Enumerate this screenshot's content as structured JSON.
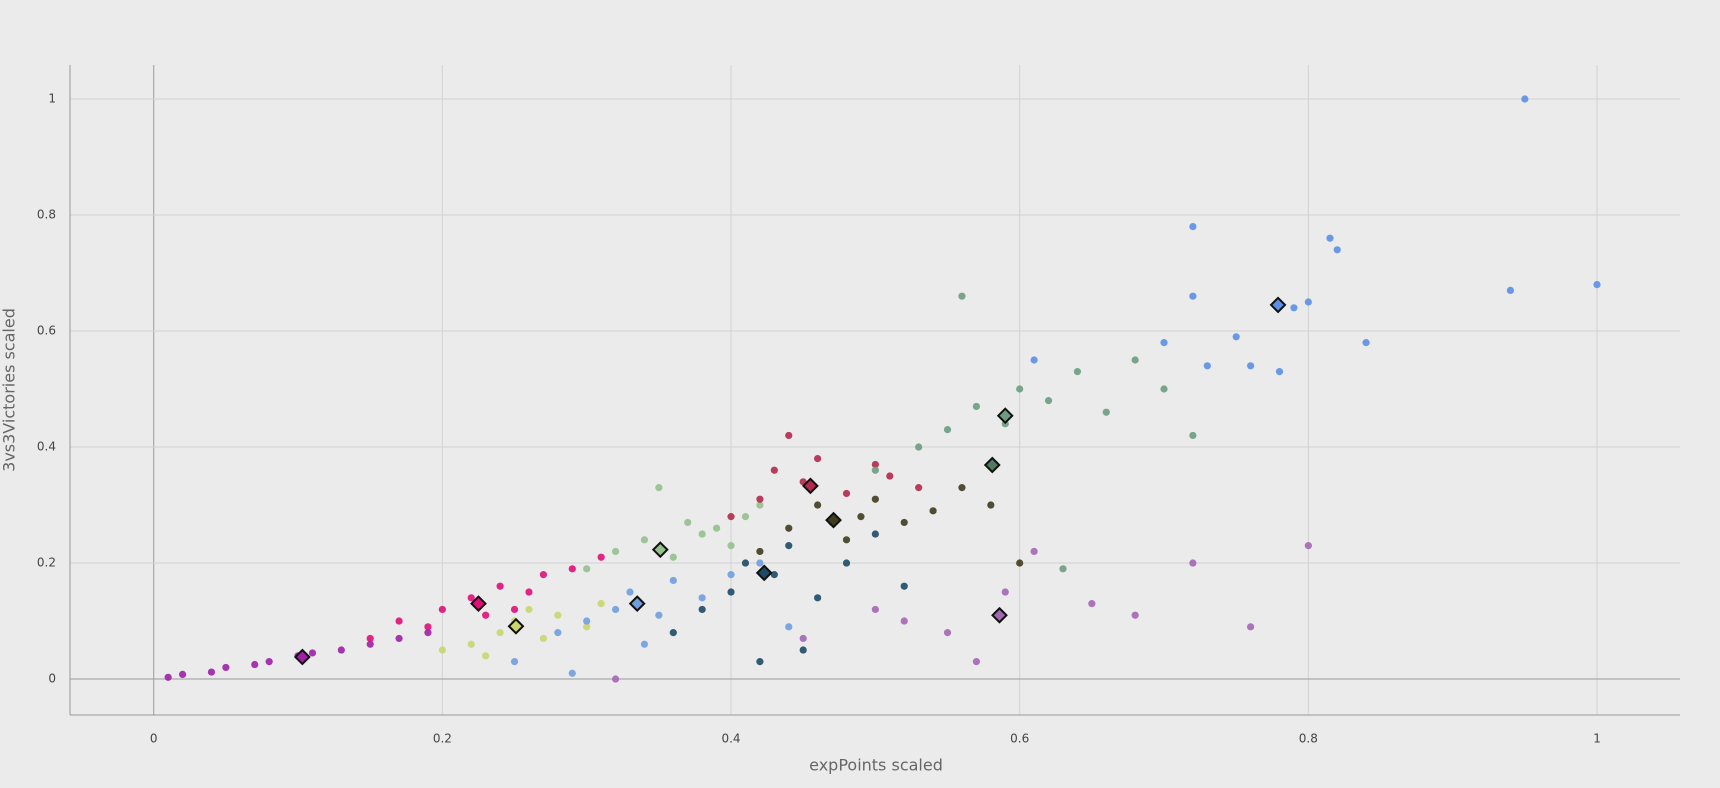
{
  "chart_data": {
    "type": "scatter",
    "x_label": "expPoints scaled",
    "y_label": "3vs3Victories scaled",
    "xlim": [
      -0.058,
      1.0575
    ],
    "ylim": [
      -0.062,
      1.0586
    ],
    "xticks": [
      0,
      0.2,
      0.4,
      0.6,
      0.8,
      1
    ],
    "yticks": [
      0,
      0.2,
      0.4,
      0.6,
      0.8,
      1
    ],
    "grid": true,
    "series": [
      {
        "color": "#a020a8",
        "x": [
          0.01,
          0.02,
          0.04,
          0.05,
          0.07,
          0.08,
          0.1,
          0.11,
          0.13,
          0.15,
          0.17,
          0.19
        ],
        "values": [
          0.003,
          0.008,
          0.012,
          0.02,
          0.025,
          0.03,
          0.04,
          0.045,
          0.05,
          0.06,
          0.07,
          0.08
        ]
      },
      {
        "color": "#e0107a",
        "x": [
          0.15,
          0.17,
          0.19,
          0.2,
          0.22,
          0.23,
          0.24,
          0.26,
          0.27,
          0.29,
          0.31,
          0.25
        ],
        "values": [
          0.07,
          0.1,
          0.09,
          0.12,
          0.14,
          0.11,
          0.16,
          0.15,
          0.18,
          0.19,
          0.21,
          0.12
        ]
      },
      {
        "color": "#c9d66e",
        "x": [
          0.2,
          0.22,
          0.24,
          0.25,
          0.27,
          0.28,
          0.3,
          0.31,
          0.26,
          0.23
        ],
        "values": [
          0.05,
          0.06,
          0.08,
          0.1,
          0.07,
          0.11,
          0.09,
          0.13,
          0.12,
          0.04
        ]
      },
      {
        "color": "#6f9ee0",
        "x": [
          0.25,
          0.28,
          0.3,
          0.32,
          0.33,
          0.35,
          0.36,
          0.38,
          0.4,
          0.42,
          0.44,
          0.34,
          0.29
        ],
        "values": [
          0.03,
          0.08,
          0.1,
          0.12,
          0.15,
          0.11,
          0.17,
          0.14,
          0.18,
          0.2,
          0.09,
          0.06,
          0.01
        ]
      },
      {
        "color": "#95c08e",
        "x": [
          0.3,
          0.32,
          0.34,
          0.36,
          0.37,
          0.38,
          0.4,
          0.41,
          0.42,
          0.39,
          0.35
        ],
        "values": [
          0.19,
          0.22,
          0.24,
          0.21,
          0.27,
          0.25,
          0.23,
          0.28,
          0.3,
          0.26,
          0.33
        ]
      },
      {
        "color": "#1d4a66",
        "x": [
          0.36,
          0.38,
          0.4,
          0.41,
          0.43,
          0.44,
          0.46,
          0.48,
          0.5,
          0.52,
          0.45,
          0.42
        ],
        "values": [
          0.08,
          0.12,
          0.15,
          0.2,
          0.18,
          0.23,
          0.14,
          0.2,
          0.25,
          0.16,
          0.05,
          0.03
        ]
      },
      {
        "color": "#b22a4e",
        "x": [
          0.4,
          0.42,
          0.43,
          0.45,
          0.46,
          0.48,
          0.5,
          0.51,
          0.53,
          0.44,
          0.47
        ],
        "values": [
          0.28,
          0.31,
          0.36,
          0.34,
          0.38,
          0.32,
          0.37,
          0.35,
          0.33,
          0.42,
          0.27
        ]
      },
      {
        "color": "#3f3d1e",
        "x": [
          0.42,
          0.44,
          0.46,
          0.48,
          0.49,
          0.5,
          0.52,
          0.54,
          0.56,
          0.58,
          0.6
        ],
        "values": [
          0.22,
          0.26,
          0.3,
          0.24,
          0.28,
          0.31,
          0.27,
          0.29,
          0.33,
          0.3,
          0.2
        ]
      },
      {
        "color": "#6d9c82",
        "x": [
          0.5,
          0.53,
          0.55,
          0.57,
          0.59,
          0.6,
          0.62,
          0.64,
          0.66,
          0.68,
          0.7,
          0.72,
          0.56,
          0.63
        ],
        "values": [
          0.36,
          0.4,
          0.43,
          0.47,
          0.44,
          0.5,
          0.48,
          0.53,
          0.46,
          0.55,
          0.5,
          0.42,
          0.66,
          0.19
        ]
      },
      {
        "color": "#a466b4",
        "x": [
          0.45,
          0.5,
          0.52,
          0.55,
          0.57,
          0.59,
          0.61,
          0.65,
          0.68,
          0.72,
          0.76,
          0.8,
          0.32
        ],
        "values": [
          0.07,
          0.12,
          0.1,
          0.08,
          0.03,
          0.15,
          0.22,
          0.13,
          0.11,
          0.2,
          0.09,
          0.23,
          0.0
        ]
      },
      {
        "color": "#5b8fe6",
        "x": [
          0.61,
          0.7,
          0.72,
          0.75,
          0.76,
          0.78,
          0.79,
          0.8,
          0.82,
          0.84,
          0.94,
          0.95,
          1.0,
          0.73,
          0.72,
          0.815
        ],
        "values": [
          0.55,
          0.58,
          0.66,
          0.59,
          0.54,
          0.53,
          0.64,
          0.65,
          0.74,
          0.58,
          0.67,
          1.0,
          0.68,
          0.54,
          0.78,
          0.76
        ]
      }
    ],
    "centers": {
      "x": [
        0.103,
        0.225,
        0.251,
        0.335,
        0.351,
        0.423,
        0.455,
        0.471,
        0.59,
        0.581,
        0.586,
        0.779
      ],
      "values": [
        0.038,
        0.13,
        0.091,
        0.13,
        0.223,
        0.183,
        0.333,
        0.274,
        0.454,
        0.369,
        0.11,
        0.645
      ],
      "colors": [
        "#a020a8",
        "#e0107a",
        "#c9d66e",
        "#6f9ee0",
        "#95c08e",
        "#1d4a66",
        "#b22a4e",
        "#3f3d1e",
        "#6d9c82",
        "#4f7a62",
        "#a466b4",
        "#5b8fe6"
      ]
    }
  }
}
